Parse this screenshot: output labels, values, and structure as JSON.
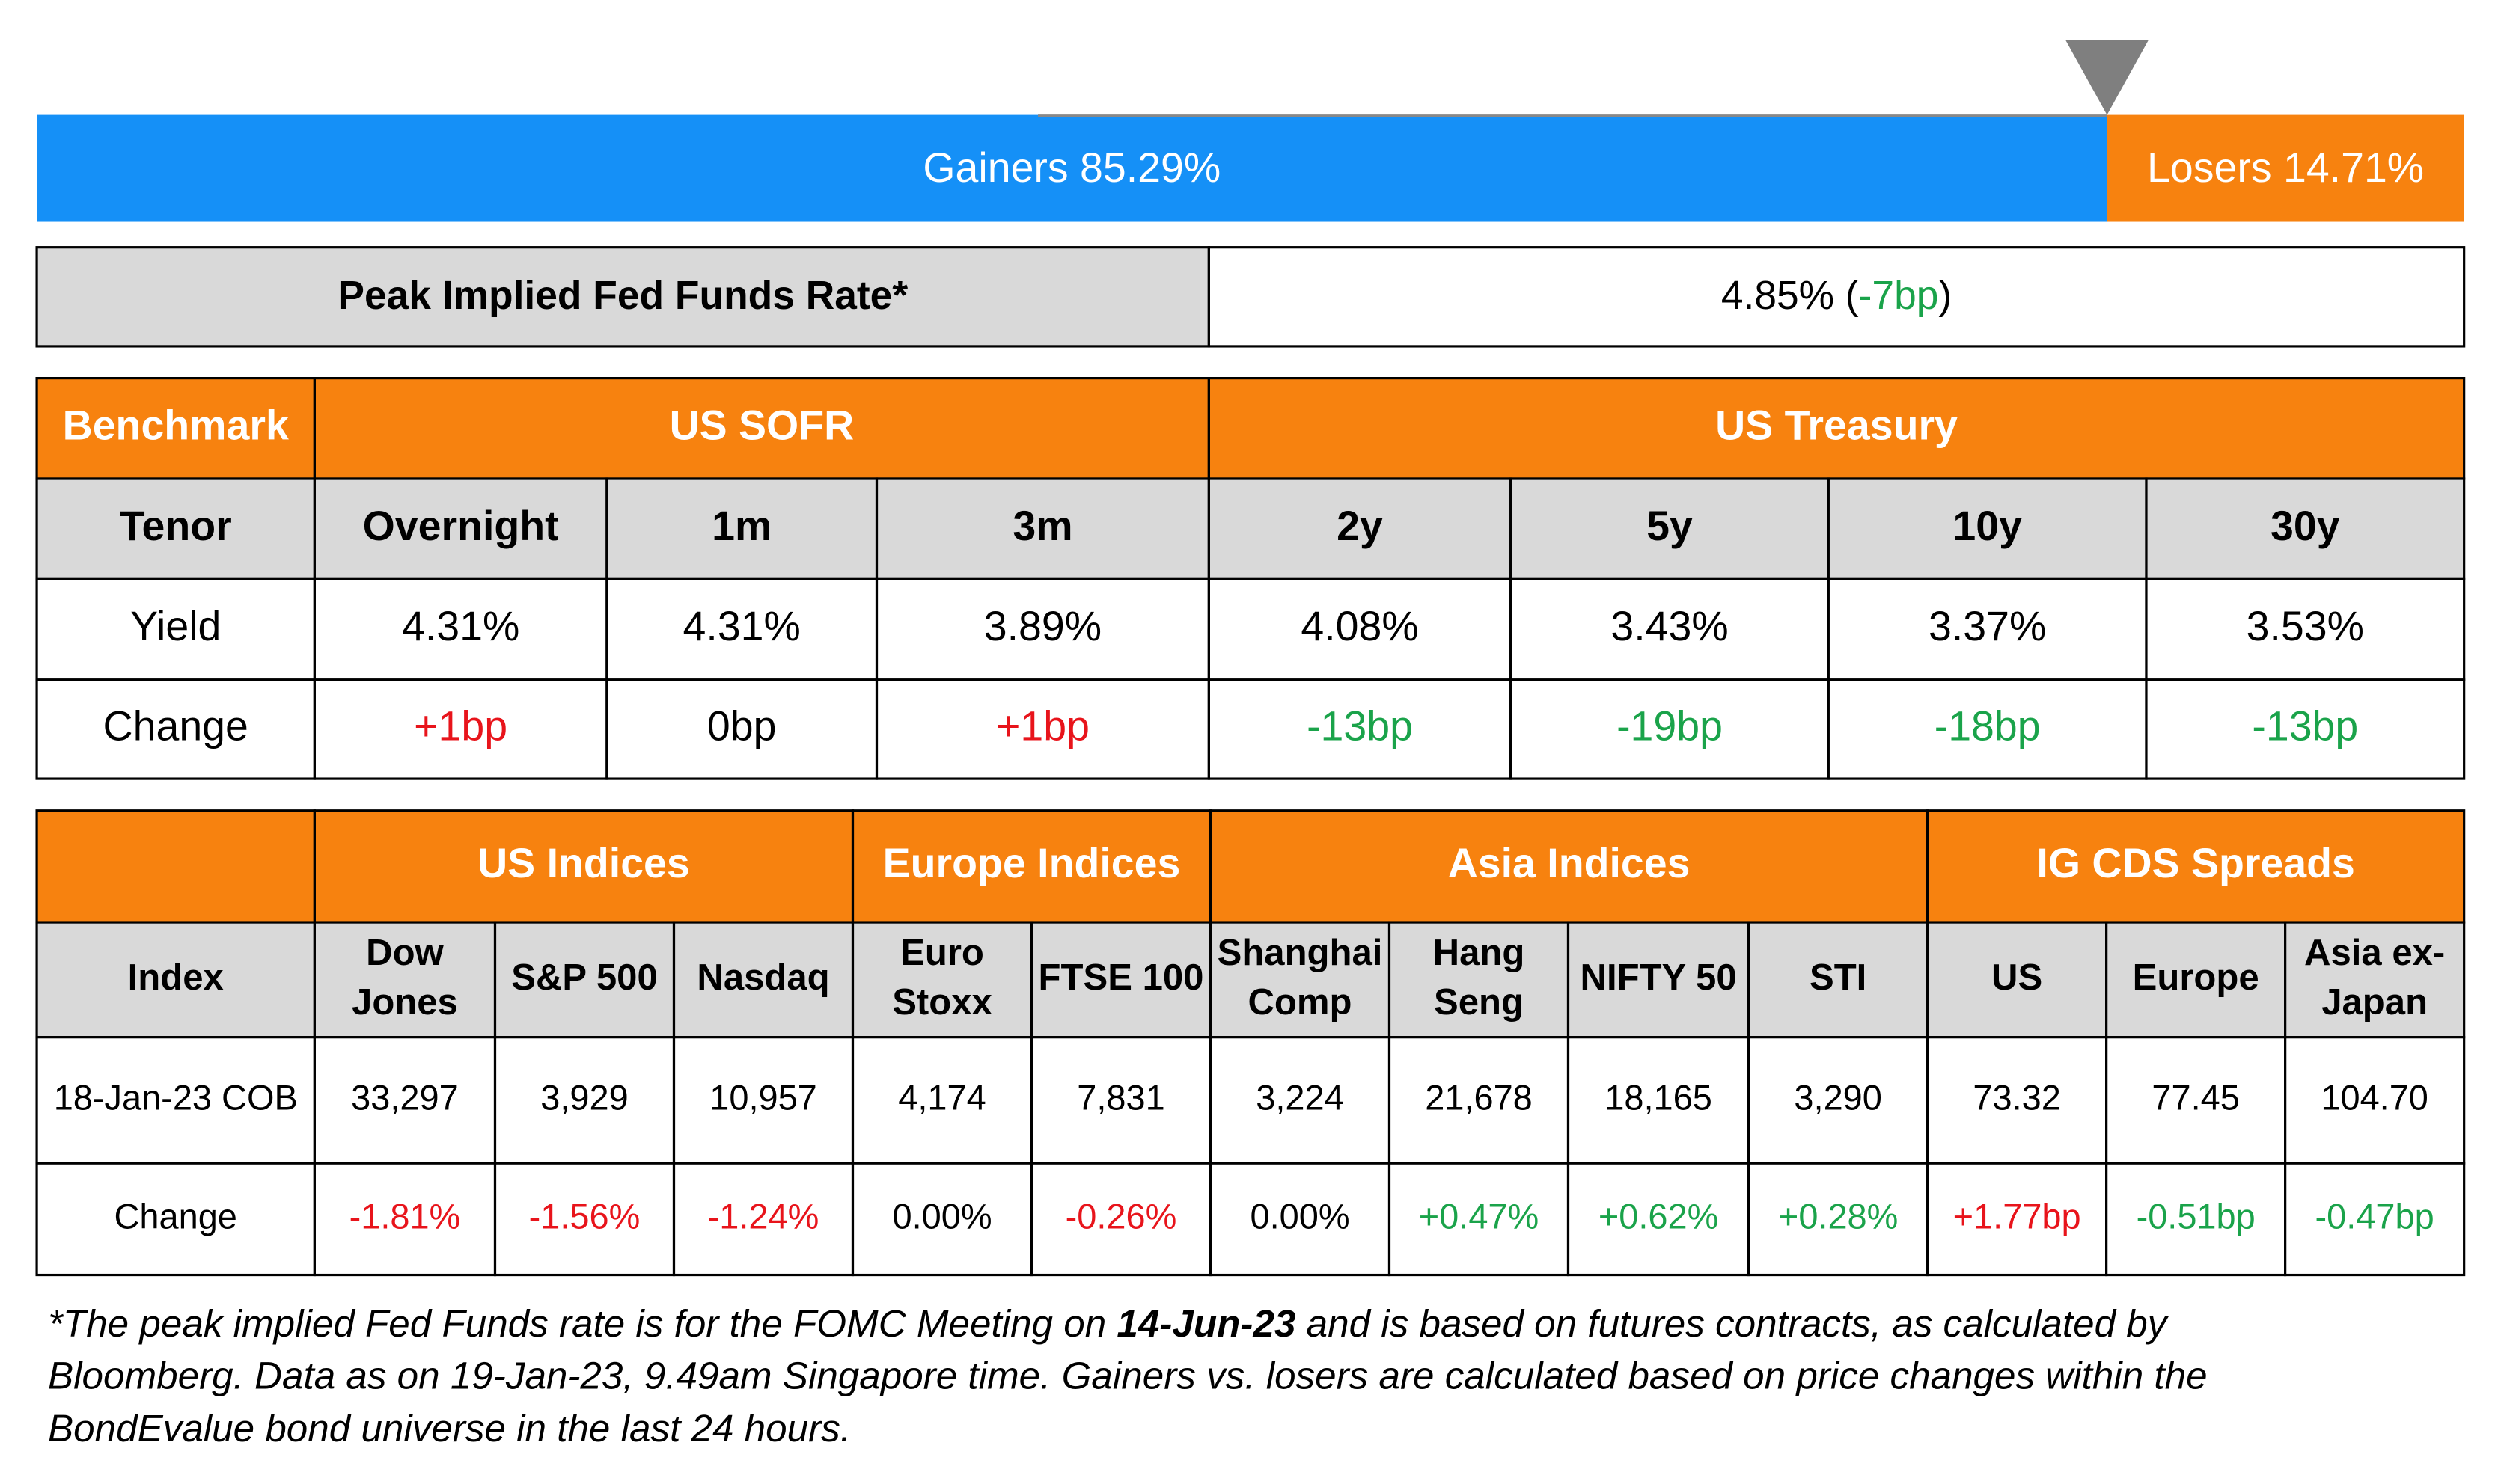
{
  "breadth": {
    "gainers": {
      "label": "Gainers 85.29%",
      "value": 85.29,
      "color": "#1590f7"
    },
    "losers": {
      "label": "Losers 14.71%",
      "value": 14.71,
      "color": "#f7820f"
    }
  },
  "fed_funds": {
    "label": "Peak Implied Fed Funds Rate*",
    "value": "4.85% (",
    "change": "-7bp",
    "close": ")",
    "change_color": "#1aa34a"
  },
  "rates_table": {
    "header": [
      "Benchmark",
      "US SOFR",
      "US Treasury"
    ],
    "tenor_row": [
      "Tenor",
      "Overnight",
      "1m",
      "3m",
      "2y",
      "5y",
      "10y",
      "30y"
    ],
    "yield_row": [
      "Yield",
      "4.31%",
      "4.31%",
      "3.89%",
      "4.08%",
      "3.43%",
      "3.37%",
      "3.53%"
    ],
    "change_row": [
      "Change",
      "+1bp",
      "0bp",
      "+1bp",
      "-13bp",
      "-19bp",
      "-18bp",
      "-13bp"
    ],
    "change_colors": [
      "#000000",
      "#e8141b",
      "#000000",
      "#e8141b",
      "#1aa34a",
      "#1aa34a",
      "#1aa34a",
      "#1aa34a"
    ]
  },
  "indices_table": {
    "header": [
      "US Indices",
      "Europe Indices",
      "Asia Indices",
      "IG CDS Spreads"
    ],
    "name_row": [
      [
        "Index"
      ],
      [
        "Dow",
        "Jones"
      ],
      [
        "S&P 500"
      ],
      [
        "Nasdaq"
      ],
      [
        "Euro",
        "Stoxx"
      ],
      [
        "FTSE 100"
      ],
      [
        "Shanghai",
        "Comp"
      ],
      [
        "Hang",
        "Seng"
      ],
      [
        "NIFTY 50"
      ],
      [
        "STI"
      ],
      [
        "US"
      ],
      [
        "Europe"
      ],
      [
        "Asia ex-",
        "Japan"
      ]
    ],
    "value_row": [
      "18-Jan-23 COB",
      "33,297",
      "3,929",
      "10,957",
      "4,174",
      "7,831",
      "3,224",
      "21,678",
      "18,165",
      "3,290",
      "73.32",
      "77.45",
      "104.70"
    ],
    "change_row": [
      "Change",
      "-1.81%",
      "-1.56%",
      "-1.24%",
      "0.00%",
      "-0.26%",
      "0.00%",
      "+0.47%",
      "+0.62%",
      "+0.28%",
      "+1.77bp",
      "-0.51bp",
      "-0.47bp"
    ],
    "change_colors": [
      "#000000",
      "#e8141b",
      "#e8141b",
      "#e8141b",
      "#000000",
      "#e8141b",
      "#000000",
      "#1aa34a",
      "#1aa34a",
      "#1aa34a",
      "#e8141b",
      "#1aa34a",
      "#1aa34a"
    ]
  },
  "footnote": {
    "line1_before": "*The peak implied Fed Funds rate is for the FOMC Meeting on ",
    "date": "14-Jun-23",
    "line1_after": " and is based on futures contracts, as calculated by",
    "line2": "Bloomberg. Data as on 19-Jan-23, 9.49am Singapore time. Gainers vs. losers are calculated based on price changes within the",
    "line3": "BondEvalue bond universe in the last 24 hours."
  }
}
